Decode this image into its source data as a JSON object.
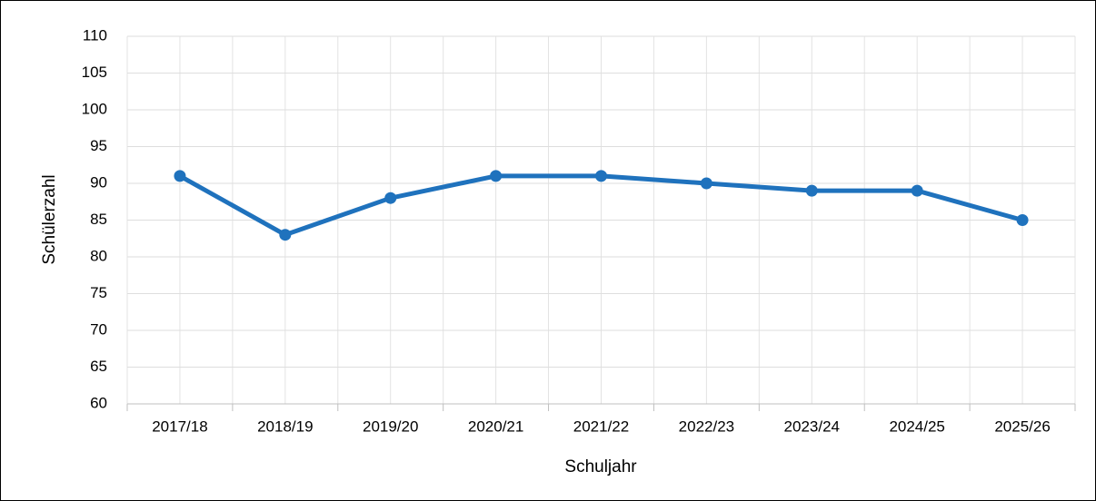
{
  "chart_data": {
    "type": "line",
    "x_label": "Schuljahr",
    "y_label": "Schülerzahl",
    "categories": [
      "2017/18",
      "2018/19",
      "2019/20",
      "2020/21",
      "2021/22",
      "2022/23",
      "2023/24",
      "2024/25",
      "2025/26"
    ],
    "series": [
      {
        "name": "Schülerzahl",
        "color": "#1f72bd",
        "values": [
          91,
          83,
          88,
          91,
          91,
          90,
          89,
          89,
          85
        ]
      }
    ],
    "ylim": [
      60,
      110
    ],
    "yticks": [
      60,
      65,
      70,
      75,
      80,
      85,
      90,
      95,
      100,
      105,
      110
    ],
    "grid": true
  }
}
